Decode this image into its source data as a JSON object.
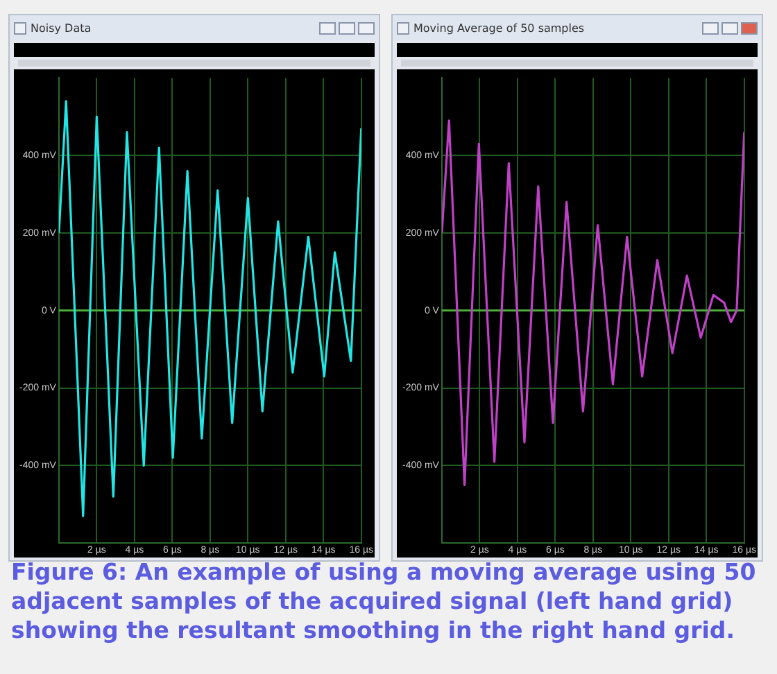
{
  "chart_data": [
    {
      "type": "line",
      "title": "Noisy Data",
      "x": [
        0,
        0.38,
        1.28,
        2.0,
        2.88,
        3.6,
        4.49,
        5.3,
        6.03,
        6.8,
        7.56,
        8.4,
        9.17,
        10.0,
        10.77,
        11.6,
        12.37,
        13.2,
        14.04,
        14.6,
        15.45,
        16
      ],
      "series": [
        {
          "color": "#22e5e5",
          "values": [
            200,
            540,
            -530,
            500,
            -480,
            460,
            -400,
            420,
            -380,
            360,
            -330,
            310,
            -290,
            290,
            -260,
            230,
            -160,
            190,
            -170,
            150,
            -130,
            470
          ]
        }
      ],
      "xlim": [
        0,
        16
      ],
      "xticks": [
        {
          "value": 2,
          "label": "2 µs"
        },
        {
          "value": 4,
          "label": "4 µs"
        },
        {
          "value": 6,
          "label": "6 µs"
        },
        {
          "value": 8,
          "label": "8 µs"
        },
        {
          "value": 10,
          "label": "10 µs"
        },
        {
          "value": 12,
          "label": "12 µs"
        },
        {
          "value": 14,
          "label": "14 µs"
        },
        {
          "value": 16,
          "label": "16 µs"
        }
      ],
      "ylim": [
        -600,
        600
      ],
      "yticks": [
        {
          "value": -400,
          "label": "-400 mV"
        },
        {
          "value": -200,
          "label": "-200 mV"
        },
        {
          "value": 0,
          "label": "0 V"
        },
        {
          "value": 200,
          "label": "200 mV"
        },
        {
          "value": 400,
          "label": "400 mV"
        }
      ],
      "grid": true,
      "ref_lines": [
        {
          "axis": "y",
          "value": 0,
          "color": "#4caf3c"
        }
      ],
      "annotations": [
        "Figure 6: An example of using a moving average using 50 adjacent samples of the acquired signal (left hand grid) showing the resultant smoothing in the right hand grid."
      ]
    },
    {
      "type": "line",
      "title": "Moving Average of 50 samples",
      "x": [
        0,
        0.38,
        1.2,
        1.96,
        2.78,
        3.54,
        4.37,
        5.1,
        5.88,
        6.6,
        7.47,
        8.25,
        9.05,
        9.8,
        10.6,
        11.4,
        12.2,
        12.97,
        13.7,
        14.37,
        14.94,
        15.3,
        15.6,
        16
      ],
      "series": [
        {
          "color": "#c040c8",
          "values": [
            200,
            490,
            -450,
            430,
            -390,
            380,
            -340,
            320,
            -290,
            280,
            -260,
            220,
            -190,
            190,
            -170,
            130,
            -110,
            90,
            -70,
            40,
            20,
            -30,
            0,
            460
          ]
        }
      ],
      "xlim": [
        0,
        16
      ],
      "xticks": [
        {
          "value": 2,
          "label": "2 µs"
        },
        {
          "value": 4,
          "label": "4 µs"
        },
        {
          "value": 6,
          "label": "6 µs"
        },
        {
          "value": 8,
          "label": "8 µs"
        },
        {
          "value": 10,
          "label": "10 µs"
        },
        {
          "value": 12,
          "label": "12 µs"
        },
        {
          "value": 14,
          "label": "14 µs"
        },
        {
          "value": 16,
          "label": "16 µs"
        }
      ],
      "ylim": [
        -600,
        600
      ],
      "yticks": [
        {
          "value": -400,
          "label": "-400 mV"
        },
        {
          "value": -200,
          "label": "-200 mV"
        },
        {
          "value": 0,
          "label": "0 V"
        },
        {
          "value": 200,
          "label": "200 mV"
        },
        {
          "value": 400,
          "label": "400 mV"
        }
      ],
      "grid": true,
      "ref_lines": [
        {
          "axis": "y",
          "value": 0,
          "color": "#4caf3c"
        }
      ]
    }
  ]
}
